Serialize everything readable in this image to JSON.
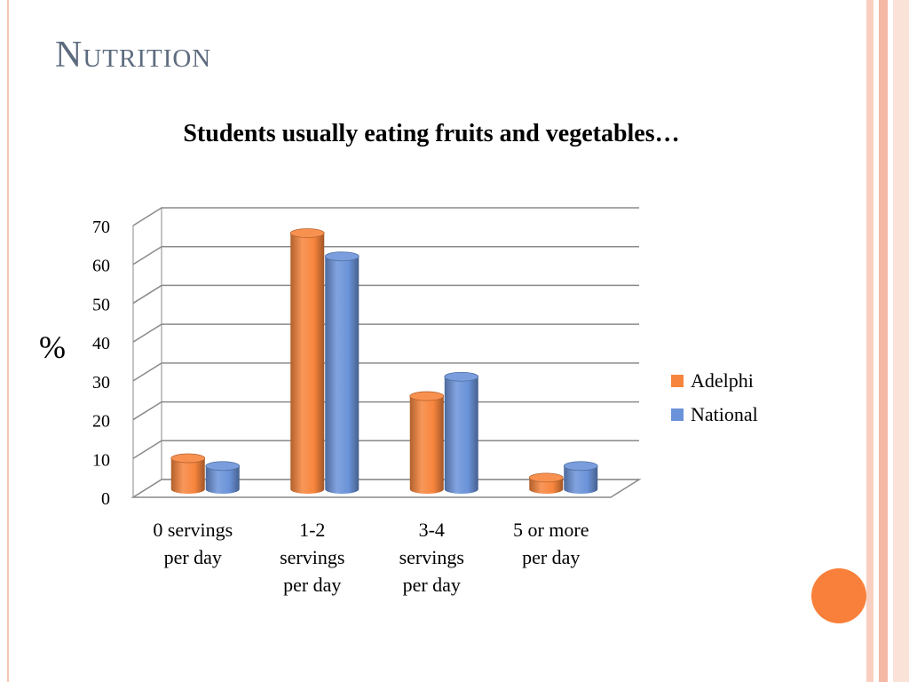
{
  "slide": {
    "title": "Nutrition"
  },
  "theme": {
    "accent": "#f7853d",
    "stripe_colors": [
      "#f8cfc0",
      "#f4b8a5",
      "#fbe2d8"
    ],
    "title_color": "#5d6b7e",
    "circle_color": "#f8803a"
  },
  "chart_data": {
    "type": "bar",
    "title": "Students usually eating fruits and vegetables…",
    "ylabel": "%",
    "xlabel": "",
    "ylim": [
      0,
      70
    ],
    "yticks": [
      0,
      10,
      20,
      30,
      40,
      50,
      60,
      70
    ],
    "grid": true,
    "legend_position": "right",
    "categories": [
      [
        "0 servings",
        "per day"
      ],
      [
        "1-2",
        "servings",
        "per day"
      ],
      [
        "3-4",
        "servings",
        "per day"
      ],
      [
        "5 or more",
        "per day"
      ]
    ],
    "series": [
      {
        "name": "Adelphi",
        "color": "#f7853d",
        "values": [
          8,
          66,
          24,
          3
        ]
      },
      {
        "name": "National",
        "color": "#6b93d9",
        "values": [
          6,
          60,
          29,
          6
        ]
      }
    ]
  }
}
